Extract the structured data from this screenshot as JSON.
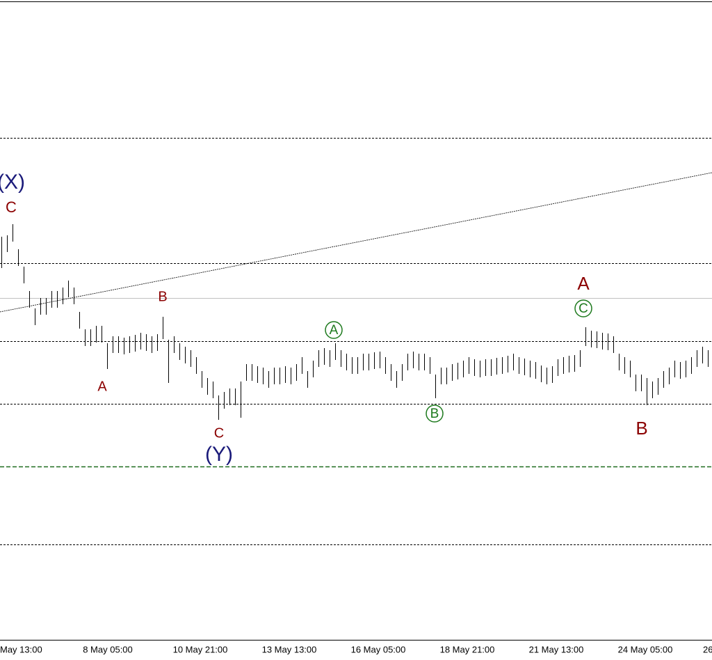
{
  "chart_data": {
    "type": "ohlc",
    "color": "#000000",
    "ylim": [
      0,
      948
    ],
    "high": [
      608,
      610,
      626,
      590,
      565,
      530,
      505,
      520,
      520,
      530,
      530,
      535,
      545,
      535,
      500,
      475,
      475,
      480,
      480,
      455,
      465,
      465,
      463,
      465,
      467,
      470,
      468,
      465,
      468,
      493,
      460,
      465,
      455,
      450,
      445,
      435,
      415,
      405,
      400,
      380,
      385,
      390,
      390,
      400,
      425,
      425,
      422,
      420,
      415,
      420,
      420,
      422,
      420,
      425,
      435,
      415,
      430,
      445,
      448,
      445,
      455,
      445,
      440,
      435,
      435,
      440,
      440,
      442,
      443,
      435,
      425,
      415,
      425,
      440,
      443,
      440,
      440,
      435,
      410,
      420,
      420,
      425,
      427,
      430,
      435,
      432,
      430,
      432,
      432,
      434,
      435,
      437,
      440,
      435,
      433,
      430,
      428,
      423,
      420,
      422,
      432,
      435,
      437,
      438,
      445,
      478,
      473,
      472,
      470,
      469,
      465,
      440,
      435,
      430,
      410,
      410,
      405,
      400,
      405,
      415,
      420,
      430,
      428,
      430,
      435,
      445,
      450,
      445
    ],
    "low": [
      563,
      586,
      601,
      566,
      541,
      506,
      481,
      496,
      496,
      506,
      506,
      511,
      521,
      511,
      476,
      451,
      451,
      456,
      456,
      418,
      441,
      441,
      439,
      441,
      443,
      446,
      444,
      441,
      444,
      461,
      398,
      441,
      431,
      426,
      421,
      411,
      391,
      381,
      376,
      345,
      361,
      366,
      366,
      348,
      401,
      401,
      398,
      396,
      391,
      396,
      396,
      398,
      396,
      401,
      411,
      391,
      406,
      421,
      424,
      421,
      431,
      421,
      416,
      411,
      411,
      416,
      416,
      418,
      419,
      411,
      401,
      391,
      401,
      416,
      419,
      416,
      416,
      411,
      376,
      396,
      396,
      401,
      403,
      406,
      411,
      408,
      406,
      408,
      408,
      410,
      411,
      413,
      416,
      411,
      409,
      406,
      404,
      399,
      396,
      398,
      408,
      411,
      413,
      414,
      421,
      451,
      449,
      448,
      446,
      445,
      441,
      416,
      411,
      406,
      386,
      386,
      366,
      376,
      381,
      391,
      396,
      406,
      404,
      406,
      411,
      421,
      426,
      421
    ],
    "levels": [
      750,
      570,
      458,
      368,
      166
    ],
    "support_level": 278,
    "current_price": 520,
    "trendline": [
      500,
      700
    ],
    "x_labels": [
      "May 13:00",
      "8 May 05:00",
      "10 May 21:00",
      "13 May 13:00",
      "16 May 05:00",
      "18 May 21:00",
      "21 May 13:00",
      "24 May 05:00",
      "26"
    ],
    "wave_labels": [
      "(X)",
      "C",
      "A",
      "B",
      "C",
      "(Y)",
      "A",
      "B",
      "C",
      "A",
      "B"
    ]
  }
}
